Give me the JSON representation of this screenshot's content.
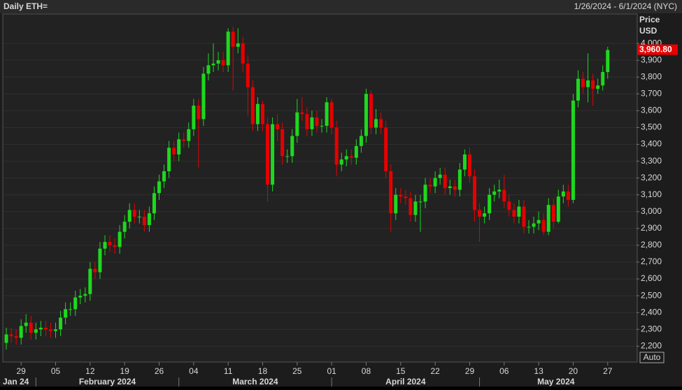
{
  "chart_data": {
    "type": "candlestick",
    "title": "Daily ETH=",
    "subtitle": "1/26/2024 - 6/1/2024 (NYC)",
    "y_label": "Price",
    "y_unit": "USD",
    "auto_label": "Auto",
    "last_label": "3,960.80",
    "up_color": "#1ed81e",
    "down_color": "#e60000",
    "grid": true,
    "xlim": [
      "2024-01-25",
      "2024-06-01"
    ],
    "ylim": [
      2110,
      4175
    ],
    "yticks": [
      {
        "value": 2200,
        "label": "2,200"
      },
      {
        "value": 2300,
        "label": "2,300"
      },
      {
        "value": 2400,
        "label": "2,400"
      },
      {
        "value": 2500,
        "label": "2,500"
      },
      {
        "value": 2600,
        "label": "2,600"
      },
      {
        "value": 2700,
        "label": "2,700"
      },
      {
        "value": 2800,
        "label": "2,800"
      },
      {
        "value": 2900,
        "label": "2,900"
      },
      {
        "value": 3000,
        "label": "3,000"
      },
      {
        "value": 3100,
        "label": "3,100"
      },
      {
        "value": 3200,
        "label": "3,200"
      },
      {
        "value": 3300,
        "label": "3,300"
      },
      {
        "value": 3400,
        "label": "3,400"
      },
      {
        "value": 3500,
        "label": "3,500"
      },
      {
        "value": 3600,
        "label": "3,600"
      },
      {
        "value": 3700,
        "label": "3,700"
      },
      {
        "value": 3800,
        "label": "3,800"
      },
      {
        "value": 3900,
        "label": "3,900"
      },
      {
        "value": 4000,
        "label": "4,000"
      }
    ],
    "xticks": [
      {
        "value": "2024-01-29",
        "label": "29"
      },
      {
        "value": "2024-02-05",
        "label": "05"
      },
      {
        "value": "2024-02-12",
        "label": "12"
      },
      {
        "value": "2024-02-19",
        "label": "19"
      },
      {
        "value": "2024-02-26",
        "label": "26"
      },
      {
        "value": "2024-03-04",
        "label": "04"
      },
      {
        "value": "2024-03-11",
        "label": "11"
      },
      {
        "value": "2024-03-18",
        "label": "18"
      },
      {
        "value": "2024-03-25",
        "label": "25"
      },
      {
        "value": "2024-04-01",
        "label": "01"
      },
      {
        "value": "2024-04-08",
        "label": "08"
      },
      {
        "value": "2024-04-15",
        "label": "15"
      },
      {
        "value": "2024-04-22",
        "label": "22"
      },
      {
        "value": "2024-04-29",
        "label": "29"
      },
      {
        "value": "2024-05-06",
        "label": "06"
      },
      {
        "value": "2024-05-13",
        "label": "13"
      },
      {
        "value": "2024-05-20",
        "label": "20"
      },
      {
        "value": "2024-05-27",
        "label": "27"
      }
    ],
    "month_ticks": [
      {
        "value": "2024-01-25",
        "label": "Jan 24"
      },
      {
        "value": "2024-02-01",
        "label": "February 2024"
      },
      {
        "value": "2024-03-01",
        "label": "March 2024"
      },
      {
        "value": "2024-04-01",
        "label": "April 2024"
      },
      {
        "value": "2024-05-01",
        "label": "May 2024"
      }
    ],
    "x": [
      "2024-01-26",
      "2024-01-27",
      "2024-01-28",
      "2024-01-29",
      "2024-01-30",
      "2024-01-31",
      "2024-02-01",
      "2024-02-02",
      "2024-02-03",
      "2024-02-04",
      "2024-02-05",
      "2024-02-06",
      "2024-02-07",
      "2024-02-08",
      "2024-02-09",
      "2024-02-10",
      "2024-02-11",
      "2024-02-12",
      "2024-02-13",
      "2024-02-14",
      "2024-02-15",
      "2024-02-16",
      "2024-02-17",
      "2024-02-18",
      "2024-02-19",
      "2024-02-20",
      "2024-02-21",
      "2024-02-22",
      "2024-02-23",
      "2024-02-24",
      "2024-02-25",
      "2024-02-26",
      "2024-02-27",
      "2024-02-28",
      "2024-02-29",
      "2024-03-01",
      "2024-03-02",
      "2024-03-03",
      "2024-03-04",
      "2024-03-05",
      "2024-03-06",
      "2024-03-07",
      "2024-03-08",
      "2024-03-09",
      "2024-03-10",
      "2024-03-11",
      "2024-03-12",
      "2024-03-13",
      "2024-03-14",
      "2024-03-15",
      "2024-03-16",
      "2024-03-17",
      "2024-03-18",
      "2024-03-19",
      "2024-03-20",
      "2024-03-21",
      "2024-03-22",
      "2024-03-23",
      "2024-03-24",
      "2024-03-25",
      "2024-03-26",
      "2024-03-27",
      "2024-03-28",
      "2024-03-29",
      "2024-03-30",
      "2024-03-31",
      "2024-04-01",
      "2024-04-02",
      "2024-04-03",
      "2024-04-04",
      "2024-04-05",
      "2024-04-06",
      "2024-04-07",
      "2024-04-08",
      "2024-04-09",
      "2024-04-10",
      "2024-04-11",
      "2024-04-12",
      "2024-04-13",
      "2024-04-14",
      "2024-04-15",
      "2024-04-16",
      "2024-04-17",
      "2024-04-18",
      "2024-04-19",
      "2024-04-20",
      "2024-04-21",
      "2024-04-22",
      "2024-04-23",
      "2024-04-24",
      "2024-04-25",
      "2024-04-26",
      "2024-04-27",
      "2024-04-28",
      "2024-04-29",
      "2024-04-30",
      "2024-05-01",
      "2024-05-02",
      "2024-05-03",
      "2024-05-04",
      "2024-05-05",
      "2024-05-06",
      "2024-05-07",
      "2024-05-08",
      "2024-05-09",
      "2024-05-10",
      "2024-05-11",
      "2024-05-12",
      "2024-05-13",
      "2024-05-14",
      "2024-05-15",
      "2024-05-16",
      "2024-05-17",
      "2024-05-18",
      "2024-05-19",
      "2024-05-20",
      "2024-05-21",
      "2024-05-22",
      "2024-05-23",
      "2024-05-24",
      "2024-05-25",
      "2024-05-26",
      "2024-05-27"
    ],
    "open": [
      2220,
      2270,
      2260,
      2250,
      2320,
      2340,
      2280,
      2300,
      2310,
      2300,
      2290,
      2300,
      2370,
      2420,
      2420,
      2490,
      2500,
      2510,
      2660,
      2640,
      2780,
      2820,
      2800,
      2790,
      2880,
      2940,
      3010,
      2970,
      2970,
      2920,
      2990,
      3110,
      3180,
      3240,
      3380,
      3340,
      3430,
      3420,
      3490,
      3630,
      3550,
      3820,
      3870,
      3880,
      3900,
      3870,
      4070,
      3980,
      4000,
      3880,
      3740,
      3520,
      3640,
      3520,
      3160,
      3520,
      3490,
      3330,
      3330,
      3450,
      3590,
      3580,
      3490,
      3560,
      3510,
      3510,
      3650,
      3500,
      3280,
      3310,
      3330,
      3320,
      3390,
      3450,
      3700,
      3500,
      3550,
      3500,
      3240,
      2990,
      3100,
      3090,
      3080,
      2980,
      3060,
      3060,
      3160,
      3150,
      3200,
      3220,
      3140,
      3150,
      3130,
      3250,
      3340,
      3210,
      3010,
      2970,
      2990,
      3100,
      3120,
      3130,
      3060,
      3010,
      2970,
      3030,
      2910,
      2910,
      2930,
      2950,
      2880,
      3040,
      2940,
      3090,
      3120,
      3070,
      3660,
      3790,
      3740,
      3780,
      3730,
      3750,
      3830
    ],
    "high": [
      2310,
      2310,
      2300,
      2360,
      2390,
      2380,
      2340,
      2350,
      2350,
      2340,
      2340,
      2410,
      2460,
      2460,
      2530,
      2540,
      2550,
      2700,
      2700,
      2820,
      2860,
      2860,
      2840,
      2920,
      2980,
      3050,
      3050,
      3010,
      3010,
      3030,
      3150,
      3220,
      3280,
      3420,
      3420,
      3470,
      3470,
      3530,
      3670,
      3670,
      3860,
      3940,
      4000,
      3950,
      3950,
      4090,
      4100,
      4090,
      4040,
      3930,
      3780,
      3680,
      3660,
      3560,
      3560,
      3580,
      3530,
      3370,
      3490,
      3670,
      3680,
      3620,
      3600,
      3600,
      3550,
      3680,
      3670,
      3540,
      3350,
      3370,
      3370,
      3430,
      3490,
      3730,
      3720,
      3610,
      3590,
      3540,
      3280,
      3140,
      3140,
      3130,
      3120,
      3100,
      3100,
      3200,
      3200,
      3240,
      3260,
      3260,
      3190,
      3190,
      3290,
      3370,
      3380,
      3250,
      3050,
      3030,
      3140,
      3160,
      3190,
      3220,
      3100,
      3050,
      3070,
      3070,
      2950,
      2970,
      3000,
      2990,
      3080,
      3080,
      3130,
      3160,
      3160,
      3700,
      3840,
      3830,
      3940,
      3820,
      3790,
      3870,
      3980
    ],
    "low": [
      2180,
      2220,
      2210,
      2210,
      2280,
      2240,
      2240,
      2260,
      2260,
      2250,
      2250,
      2260,
      2330,
      2380,
      2380,
      2450,
      2460,
      2470,
      2600,
      2600,
      2740,
      2760,
      2750,
      2750,
      2840,
      2900,
      2930,
      2930,
      2880,
      2880,
      2950,
      3070,
      3140,
      3200,
      3300,
      3300,
      3380,
      3380,
      3450,
      3260,
      3510,
      3780,
      3830,
      3840,
      3830,
      3830,
      3720,
      3940,
      3830,
      3570,
      3480,
      3480,
      3480,
      3060,
      3120,
      3420,
      3280,
      3290,
      3290,
      3410,
      3540,
      3450,
      3450,
      3470,
      3470,
      3470,
      3460,
      3210,
      3240,
      3270,
      3280,
      3280,
      3350,
      3410,
      3460,
      3460,
      3460,
      3200,
      2880,
      2950,
      3050,
      3040,
      2940,
      2940,
      2880,
      3020,
      3110,
      3110,
      3160,
      3100,
      3100,
      3090,
      3090,
      3210,
      3170,
      2940,
      2820,
      2930,
      2950,
      3060,
      3080,
      3020,
      2970,
      2930,
      2930,
      2870,
      2870,
      2870,
      2890,
      2860,
      2860,
      2900,
      2930,
      3050,
      3030,
      3050,
      3620,
      3700,
      3650,
      3630,
      3700,
      3720,
      3790
    ],
    "close": [
      2270,
      2260,
      2250,
      2320,
      2340,
      2280,
      2300,
      2310,
      2300,
      2290,
      2300,
      2370,
      2420,
      2420,
      2490,
      2500,
      2510,
      2660,
      2640,
      2780,
      2820,
      2800,
      2790,
      2880,
      2940,
      3010,
      2970,
      2970,
      2920,
      2990,
      3110,
      3180,
      3240,
      3380,
      3340,
      3430,
      3420,
      3490,
      3630,
      3550,
      3820,
      3870,
      3880,
      3900,
      3870,
      4070,
      3980,
      4000,
      3880,
      3740,
      3520,
      3640,
      3520,
      3160,
      3520,
      3490,
      3330,
      3330,
      3450,
      3590,
      3580,
      3490,
      3560,
      3510,
      3510,
      3650,
      3500,
      3280,
      3310,
      3330,
      3320,
      3390,
      3450,
      3700,
      3500,
      3550,
      3500,
      3240,
      2990,
      3100,
      3090,
      3080,
      2980,
      3060,
      3060,
      3160,
      3150,
      3200,
      3220,
      3140,
      3150,
      3130,
      3250,
      3340,
      3210,
      3010,
      2970,
      2990,
      3100,
      3120,
      3130,
      3060,
      3010,
      2970,
      3030,
      2910,
      2910,
      2930,
      2950,
      2880,
      3040,
      2940,
      3090,
      3120,
      3070,
      3660,
      3790,
      3740,
      3780,
      3730,
      3750,
      3830,
      3960.8
    ]
  }
}
